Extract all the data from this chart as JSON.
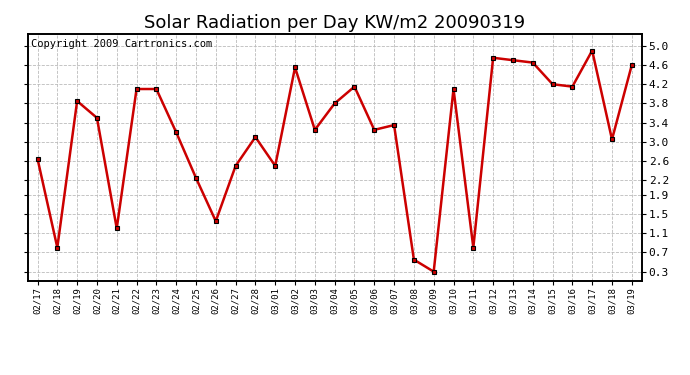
{
  "title": "Solar Radiation per Day KW/m2 20090319",
  "copyright": "Copyright 2009 Cartronics.com",
  "labels": [
    "02/17",
    "02/18",
    "02/19",
    "02/20",
    "02/21",
    "02/22",
    "02/23",
    "02/24",
    "02/25",
    "02/26",
    "02/27",
    "02/28",
    "03/01",
    "03/02",
    "03/03",
    "03/04",
    "03/05",
    "03/06",
    "03/07",
    "03/08",
    "03/09",
    "03/10",
    "03/11",
    "03/12",
    "03/13",
    "03/14",
    "03/15",
    "03/16",
    "03/17",
    "03/18",
    "03/19"
  ],
  "values": [
    2.65,
    0.8,
    3.85,
    3.5,
    1.2,
    4.1,
    4.1,
    3.2,
    2.25,
    1.35,
    2.5,
    3.1,
    2.5,
    4.55,
    3.25,
    3.8,
    4.15,
    3.25,
    3.35,
    0.55,
    0.3,
    4.1,
    0.8,
    4.75,
    4.7,
    4.65,
    4.2,
    4.15,
    4.9,
    3.05,
    4.6
  ],
  "line_color": "#cc0000",
  "marker_color": "#000000",
  "bg_color": "#ffffff",
  "plot_bg_color": "#ffffff",
  "grid_color": "#bbbbbb",
  "title_fontsize": 13,
  "copyright_fontsize": 7.5,
  "xtick_fontsize": 6.5,
  "ytick_fontsize": 8,
  "ylim": [
    0.1,
    5.25
  ],
  "yticks": [
    0.3,
    0.7,
    1.1,
    1.5,
    1.9,
    2.2,
    2.6,
    3.0,
    3.4,
    3.8,
    4.2,
    4.6,
    5.0
  ]
}
